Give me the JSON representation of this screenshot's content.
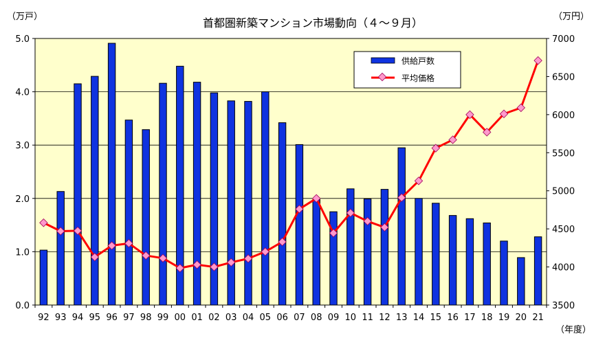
{
  "chart_data": {
    "type": "bar+line",
    "title": "首都圏新築マンション市場動向（４～９月）",
    "left_axis_unit": "（万戸）",
    "right_axis_unit": "（万円）",
    "x_axis_unit": "（年度）",
    "categories": [
      "92",
      "93",
      "94",
      "95",
      "96",
      "97",
      "98",
      "99",
      "00",
      "01",
      "02",
      "03",
      "04",
      "05",
      "06",
      "07",
      "08",
      "09",
      "10",
      "11",
      "12",
      "13",
      "14",
      "15",
      "16",
      "17",
      "18",
      "19",
      "20",
      "21"
    ],
    "y_left": {
      "min": 0,
      "max": 5,
      "step": 1,
      "tick_labels": [
        "0.0",
        "1.0",
        "2.0",
        "3.0",
        "4.0",
        "5.0"
      ]
    },
    "y_right": {
      "min": 3500,
      "max": 7000,
      "step": 500,
      "tick_labels": [
        "3500",
        "4000",
        "4500",
        "5000",
        "5500",
        "6000",
        "6500",
        "7000"
      ]
    },
    "series": [
      {
        "name": "供給戸数",
        "kind": "bar",
        "axis": "left",
        "color": "#0f33e0",
        "values": [
          1.03,
          2.13,
          4.15,
          4.29,
          4.91,
          3.47,
          3.29,
          4.16,
          4.48,
          4.18,
          3.98,
          3.83,
          3.82,
          4.0,
          3.42,
          3.01,
          1.98,
          1.75,
          2.18,
          1.99,
          2.17,
          2.95,
          2.0,
          1.91,
          1.68,
          1.62,
          1.54,
          1.2,
          0.89,
          1.28
        ]
      },
      {
        "name": "平均価格",
        "kind": "line",
        "axis": "right",
        "color": "#ff0000",
        "marker_color": "#ff99cc",
        "values": [
          4580,
          4470,
          4475,
          4130,
          4280,
          4310,
          4150,
          4115,
          3985,
          4030,
          4000,
          4060,
          4110,
          4200,
          4330,
          4760,
          4900,
          4445,
          4710,
          4600,
          4520,
          4910,
          5130,
          5560,
          5670,
          6000,
          5770,
          6010,
          6090,
          6710
        ]
      }
    ],
    "legend_position": "top-right",
    "plot_background": "#ffffcc",
    "grid": "horizontal"
  }
}
